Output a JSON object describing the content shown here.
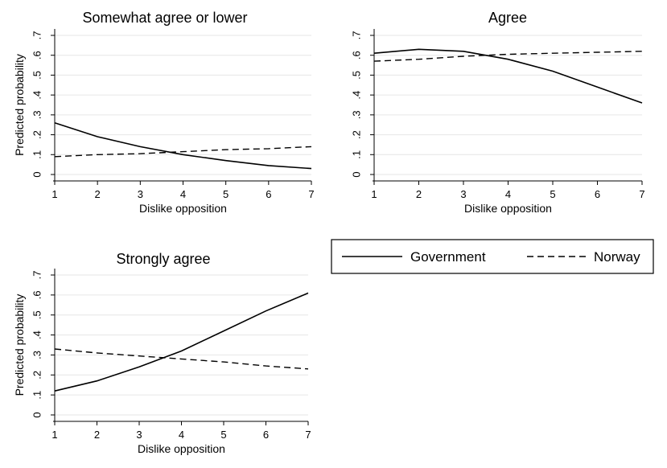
{
  "chart_data": [
    {
      "type": "line",
      "title": "Somewhat agree or lower",
      "xlabel": "Dislike opposition",
      "ylabel": "Predicted probability",
      "x": [
        1,
        2,
        3,
        4,
        5,
        6,
        7
      ],
      "xlim": [
        1,
        7
      ],
      "ylim": [
        0,
        0.7
      ],
      "yticks": [
        0,
        0.1,
        0.2,
        0.3,
        0.4,
        0.5,
        0.6,
        0.7
      ],
      "ytick_labels": [
        "0",
        ".1",
        ".2",
        ".3",
        ".4",
        ".5",
        ".6",
        ".7"
      ],
      "grid": true,
      "series": [
        {
          "name": "Government",
          "style": "solid",
          "values": [
            0.26,
            0.19,
            0.14,
            0.1,
            0.07,
            0.045,
            0.03
          ]
        },
        {
          "name": "Norway",
          "style": "dashed",
          "values": [
            0.09,
            0.1,
            0.105,
            0.115,
            0.125,
            0.13,
            0.14
          ]
        }
      ]
    },
    {
      "type": "line",
      "title": "Agree",
      "xlabel": "Dislike opposition",
      "ylabel": "",
      "x": [
        1,
        2,
        3,
        4,
        5,
        6,
        7
      ],
      "xlim": [
        1,
        7
      ],
      "ylim": [
        0,
        0.7
      ],
      "yticks": [
        0,
        0.1,
        0.2,
        0.3,
        0.4,
        0.5,
        0.6,
        0.7
      ],
      "ytick_labels": [
        "0",
        ".1",
        ".2",
        ".3",
        ".4",
        ".5",
        ".6",
        ".7"
      ],
      "grid": true,
      "series": [
        {
          "name": "Government",
          "style": "solid",
          "values": [
            0.61,
            0.63,
            0.62,
            0.58,
            0.52,
            0.44,
            0.36
          ]
        },
        {
          "name": "Norway",
          "style": "dashed",
          "values": [
            0.57,
            0.58,
            0.595,
            0.605,
            0.61,
            0.615,
            0.62
          ]
        }
      ]
    },
    {
      "type": "line",
      "title": "Strongly agree",
      "xlabel": "Dislike opposition",
      "ylabel": "Predicted probability",
      "x": [
        1,
        2,
        3,
        4,
        5,
        6,
        7
      ],
      "xlim": [
        1,
        7
      ],
      "ylim": [
        0,
        0.7
      ],
      "yticks": [
        0,
        0.1,
        0.2,
        0.3,
        0.4,
        0.5,
        0.6,
        0.7
      ],
      "ytick_labels": [
        "0",
        ".1",
        ".2",
        ".3",
        ".4",
        ".5",
        ".6",
        ".7"
      ],
      "grid": true,
      "series": [
        {
          "name": "Government",
          "style": "solid",
          "values": [
            0.12,
            0.17,
            0.24,
            0.32,
            0.42,
            0.52,
            0.61
          ]
        },
        {
          "name": "Norway",
          "style": "dashed",
          "values": [
            0.33,
            0.31,
            0.295,
            0.28,
            0.265,
            0.245,
            0.23
          ]
        }
      ]
    }
  ],
  "legend": {
    "entries": [
      {
        "label": "Government",
        "style": "solid"
      },
      {
        "label": "Norway",
        "style": "dashed"
      }
    ]
  }
}
